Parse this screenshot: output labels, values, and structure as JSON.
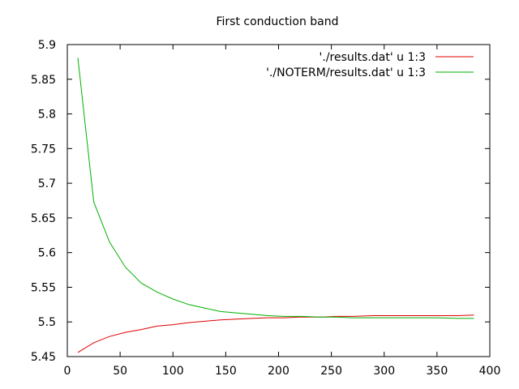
{
  "chart_data": {
    "type": "line",
    "title": "First conduction band",
    "xlabel": "",
    "ylabel": "",
    "xlim": [
      0,
      400
    ],
    "ylim": [
      5.45,
      5.9
    ],
    "xticks": [
      "0",
      "50",
      "100",
      "150",
      "200",
      "250",
      "300",
      "350",
      "400"
    ],
    "yticks": [
      "5.45",
      "5.5",
      "5.55",
      "5.6",
      "5.65",
      "5.7",
      "5.75",
      "5.8",
      "5.85",
      "5.9"
    ],
    "grid": false,
    "legend_position": "top-right",
    "series": [
      {
        "name": "'./results.dat' u 1:3",
        "color": "#e00000",
        "x": [
          10,
          25,
          40,
          55,
          70,
          85,
          100,
          115,
          130,
          145,
          160,
          175,
          190,
          205,
          220,
          240,
          255,
          270,
          290,
          310,
          330,
          350,
          370,
          385
        ],
        "y": [
          5.456,
          5.47,
          5.479,
          5.485,
          5.489,
          5.494,
          5.496,
          5.499,
          5.501,
          5.503,
          5.504,
          5.505,
          5.506,
          5.506,
          5.507,
          5.507,
          5.508,
          5.508,
          5.509,
          5.509,
          5.509,
          5.509,
          5.509,
          5.51
        ]
      },
      {
        "name": "'./NOTERM/results.dat' u 1:3",
        "color": "#00b000",
        "x": [
          10,
          25,
          40,
          55,
          70,
          85,
          100,
          115,
          130,
          145,
          160,
          175,
          190,
          205,
          220,
          240,
          255,
          270,
          290,
          310,
          330,
          350,
          370,
          385
        ],
        "y": [
          5.881,
          5.673,
          5.615,
          5.579,
          5.556,
          5.543,
          5.533,
          5.525,
          5.52,
          5.515,
          5.513,
          5.511,
          5.509,
          5.508,
          5.508,
          5.507,
          5.507,
          5.506,
          5.506,
          5.506,
          5.506,
          5.506,
          5.505,
          5.505
        ]
      }
    ]
  }
}
